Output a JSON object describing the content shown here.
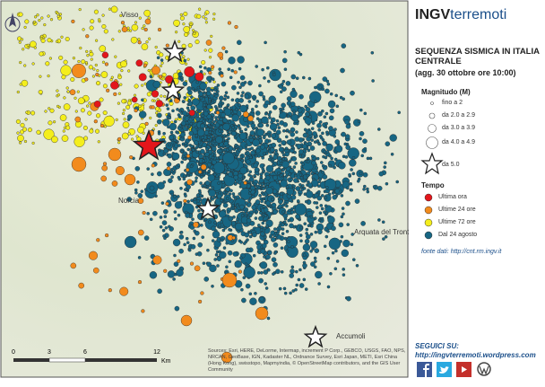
{
  "header": {
    "logo_prefix": "INGV",
    "logo_suffix": "terremoti",
    "title": "SEQUENZA SISMICA IN ITALIA CENTRALE",
    "update": "(agg. 30 ottobre ore 10:00)"
  },
  "legend": {
    "magnitude_title": "Magnitudo (M)",
    "magnitude_classes": [
      "fino a 2",
      "da 2.0 a 2.9",
      "da 3.0 a 3.9",
      "da 4.0 a 4.9",
      "da 5.0"
    ],
    "time_title": "Tempo",
    "time_classes": [
      {
        "label": "Ultima ora",
        "color": "#e3161b"
      },
      {
        "label": "Ultime 24 ore",
        "color": "#f28b1d"
      },
      {
        "label": "Ultime 72 ore",
        "color": "#f4ee1c"
      },
      {
        "label": "Dal 24 agosto",
        "color": "#176683"
      }
    ]
  },
  "source": "fonte dati: http://cnt.rm.ingv.it",
  "follow": {
    "label": "SEGUICI SU:",
    "url": "http://ingvterremoti.wordpress.com"
  },
  "map": {
    "places": [
      "Visso",
      "Norcia",
      "Arquata del Tronto",
      "Accumoli"
    ],
    "scale": {
      "ticks": [
        "0",
        "3",
        "6",
        "12"
      ],
      "unit": "Km"
    },
    "attribution": "Sources: Esri, HERE, DeLorme, Intermap, increment P Corp., GEBCO, USGS, FAO, NPS, NRCAN, GeoBase, IGN, Kadaster NL, Ordnance Survey, Esri Japan, METI, Esri China (Hong Kong), swisstopo, Mapmyindia, © OpenStreetMap contributors, and the GIS User Community"
  }
}
